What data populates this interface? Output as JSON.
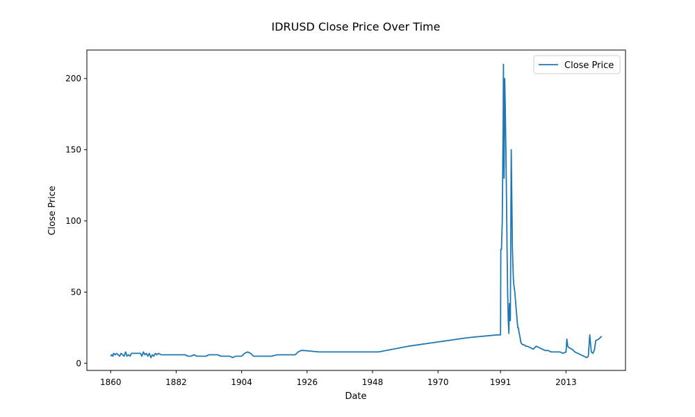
{
  "chart_data": {
    "type": "line",
    "title": "IDRUSD Close Price Over Time",
    "xlabel": "Date",
    "ylabel": "Close Price",
    "xlim": [
      1852,
      2033
    ],
    "ylim": [
      -5,
      220
    ],
    "xticks": [
      1860,
      1882,
      1904,
      1926,
      1948,
      1970,
      1991,
      2013
    ],
    "yticks": [
      0,
      50,
      100,
      150,
      200
    ],
    "grid": false,
    "legend_position": "top-right",
    "series": [
      {
        "name": "Close Price",
        "color": "#1f77b4",
        "x": [
          1860.0,
          1860.3,
          1860.7,
          1861.0,
          1861.5,
          1862.0,
          1862.5,
          1863.0,
          1863.5,
          1864.0,
          1864.5,
          1865.0,
          1865.5,
          1866.0,
          1866.5,
          1867.0,
          1868.0,
          1869.0,
          1870.0,
          1870.5,
          1871.0,
          1871.5,
          1872.0,
          1872.5,
          1873.0,
          1873.5,
          1874.0,
          1874.5,
          1875.0,
          1875.5,
          1876.0,
          1877.0,
          1878.0,
          1879.0,
          1880.0,
          1881.0,
          1882.0,
          1883.0,
          1884.0,
          1885.0,
          1886.0,
          1887.0,
          1888.0,
          1889.0,
          1890.0,
          1891.0,
          1892.0,
          1893.0,
          1894.0,
          1895.0,
          1896.0,
          1897.0,
          1898.0,
          1899.0,
          1900.0,
          1901.0,
          1902.0,
          1903.0,
          1904.0,
          1905.0,
          1906.0,
          1907.0,
          1908.0,
          1909.0,
          1910.0,
          1912.0,
          1914.0,
          1916.0,
          1918.0,
          1920.0,
          1922.0,
          1923.0,
          1924.0,
          1925.0,
          1930.0,
          1935.0,
          1940.0,
          1950.0,
          1960.0,
          1970.0,
          1980.0,
          1990.0,
          1991.0,
          1991.05,
          1991.1,
          1991.3,
          1991.6,
          1991.9,
          1992.0,
          1992.1,
          1992.2,
          1992.4,
          1992.6,
          1992.8,
          1993.0,
          1993.2,
          1993.4,
          1993.6,
          1993.8,
          1994.0,
          1994.3,
          1994.6,
          1995.0,
          1995.3,
          1995.5,
          1995.8,
          1996.0,
          1996.2,
          1996.4,
          1996.6,
          1996.8,
          1997.0,
          1997.2,
          1997.4,
          1997.6,
          1997.8,
          1998.0,
          1998.5,
          1999.0,
          1999.5,
          2000.0,
          2001.0,
          2002.0,
          2003.0,
          2004.0,
          2005.0,
          2006.0,
          2007.0,
          2008.0,
          2009.0,
          2010.0,
          2011.0,
          2012.0,
          2013.0,
          2013.3,
          2013.6,
          2014.0,
          2015.0,
          2016.0,
          2017.0,
          2018.0,
          2019.0,
          2020.0,
          2020.5,
          2021.0,
          2021.5,
          2022.0,
          2022.3,
          2022.6,
          2023.0,
          2024.0,
          2025.0
        ],
        "values": [
          5,
          6,
          5,
          7,
          6,
          7,
          6,
          5,
          7,
          6,
          5,
          8,
          5,
          6,
          5,
          7,
          7,
          7,
          7,
          5,
          8,
          6,
          7,
          5,
          7,
          4,
          6,
          5,
          7,
          6,
          7,
          6,
          6,
          6,
          6,
          6,
          6,
          6,
          6,
          6,
          5,
          5,
          6,
          5,
          5,
          5,
          5,
          6,
          6,
          6,
          6,
          5,
          5,
          5,
          5,
          4,
          5,
          5,
          5,
          7,
          8,
          7,
          5,
          5,
          5,
          5,
          5,
          6,
          6,
          6,
          6,
          8,
          9,
          9,
          8,
          8,
          8,
          8,
          12,
          15,
          18,
          20,
          20,
          50,
          80,
          80,
          100,
          170,
          210,
          160,
          130,
          200,
          180,
          150,
          120,
          80,
          50,
          30,
          21,
          42,
          30,
          150,
          80,
          60,
          55,
          50,
          45,
          40,
          35,
          30,
          25,
          25,
          22,
          20,
          18,
          15,
          14,
          13,
          13,
          12,
          12,
          11,
          10,
          12,
          11,
          10,
          9,
          9,
          8,
          8,
          8,
          8,
          7,
          8,
          17,
          12,
          11,
          10,
          8,
          7,
          6,
          5,
          4,
          5,
          20,
          8,
          7,
          8,
          10,
          16,
          17,
          19
        ]
      }
    ]
  }
}
